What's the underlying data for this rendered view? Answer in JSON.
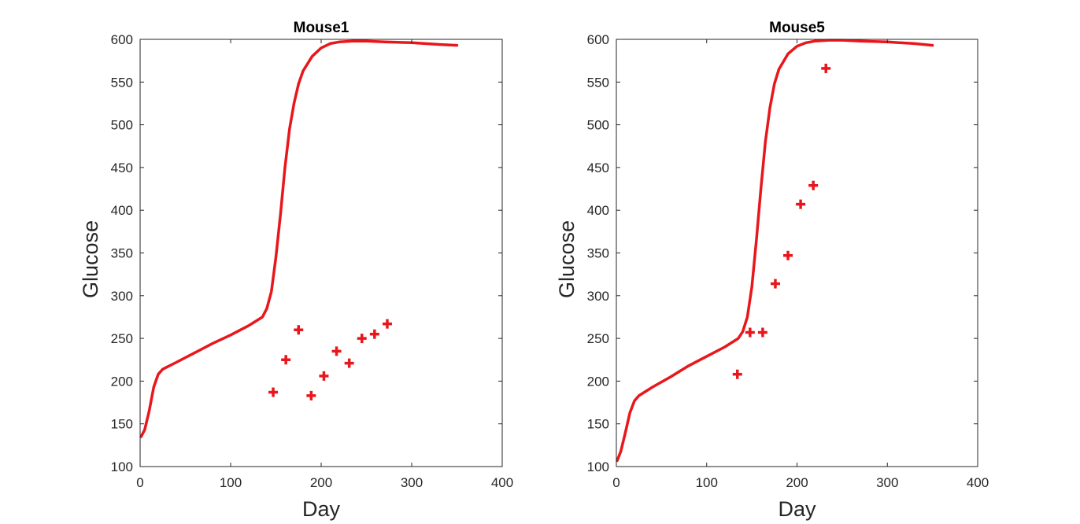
{
  "chart_data": [
    {
      "type": "scatter",
      "title": "Mouse1",
      "xlabel": "Day",
      "ylabel": "Glucose",
      "xlim": [
        0,
        400
      ],
      "ylim": [
        100,
        600
      ],
      "xticks": [
        "0",
        "100",
        "200",
        "300",
        "400"
      ],
      "yticks": [
        "100",
        "150",
        "200",
        "250",
        "300",
        "350",
        "400",
        "450",
        "500",
        "550",
        "600"
      ],
      "grid": false,
      "color": "#e8171b",
      "series": [
        {
          "kind": "line",
          "x": [
            1,
            5,
            10,
            15,
            20,
            25,
            40,
            60,
            80,
            100,
            120,
            135,
            140,
            145,
            150,
            155,
            160,
            165,
            170,
            175,
            180,
            190,
            200,
            210,
            220,
            235,
            250,
            270,
            300,
            330,
            350
          ],
          "y": [
            135,
            143,
            165,
            193,
            208,
            214,
            222,
            233,
            244,
            254,
            265,
            275,
            285,
            305,
            345,
            395,
            450,
            495,
            525,
            548,
            563,
            580,
            590,
            595,
            597,
            598,
            598,
            597,
            596,
            594,
            593
          ]
        },
        {
          "kind": "markers",
          "marker": "+",
          "x": [
            147,
            161,
            175,
            189,
            203,
            217,
            231,
            245,
            259,
            273
          ],
          "y": [
            187,
            225,
            260,
            183,
            206,
            235,
            221,
            250,
            255,
            267
          ]
        }
      ]
    },
    {
      "type": "scatter",
      "title": "Mouse5",
      "xlabel": "Day",
      "ylabel": "Glucose",
      "xlim": [
        0,
        400
      ],
      "ylim": [
        100,
        600
      ],
      "xticks": [
        "0",
        "100",
        "200",
        "300",
        "400"
      ],
      "yticks": [
        "100",
        "150",
        "200",
        "250",
        "300",
        "350",
        "400",
        "450",
        "500",
        "550",
        "600"
      ],
      "grid": false,
      "color": "#e8171b",
      "series": [
        {
          "kind": "line",
          "x": [
            1,
            5,
            10,
            15,
            20,
            25,
            40,
            60,
            80,
            100,
            120,
            135,
            140,
            145,
            150,
            155,
            160,
            165,
            170,
            175,
            180,
            190,
            200,
            210,
            220,
            235,
            250,
            270,
            300,
            330,
            350
          ],
          "y": [
            107,
            118,
            140,
            163,
            177,
            183,
            193,
            205,
            218,
            229,
            240,
            250,
            258,
            275,
            310,
            365,
            425,
            480,
            520,
            548,
            565,
            583,
            592,
            596,
            598,
            599,
            599,
            598,
            597,
            595,
            593
          ]
        },
        {
          "kind": "markers",
          "marker": "+",
          "x": [
            134,
            148,
            162,
            176,
            190,
            204,
            218,
            232
          ],
          "y": [
            208,
            257,
            257,
            314,
            347,
            407,
            429,
            566
          ]
        }
      ]
    }
  ]
}
